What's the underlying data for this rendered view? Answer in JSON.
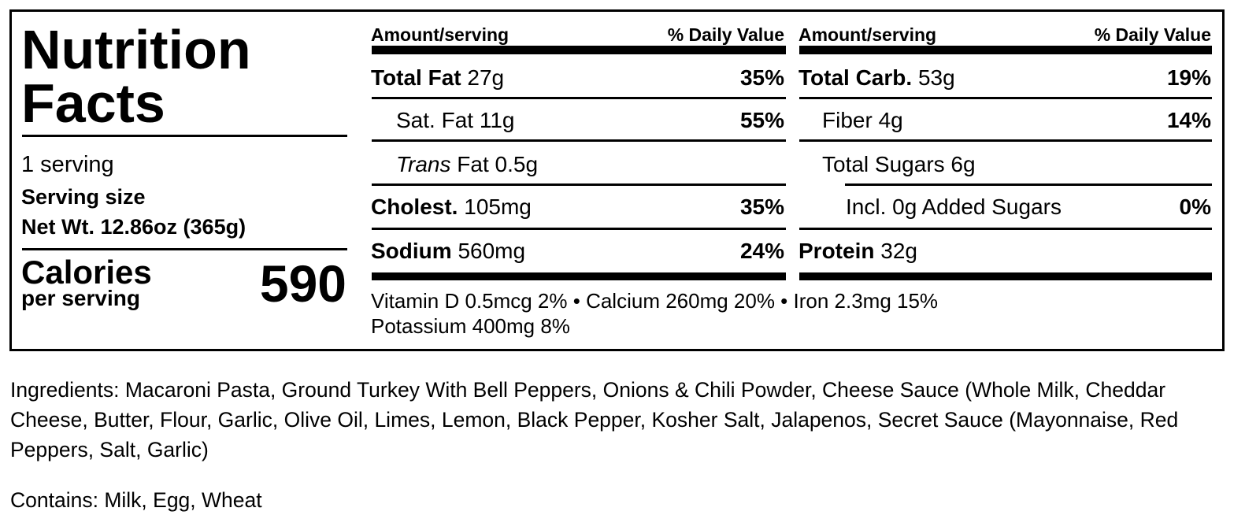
{
  "title_line1": "Nutrition",
  "title_line2": "Facts",
  "servings": "1 serving",
  "serving_size_label": "Serving size",
  "serving_size_value": "Net Wt. 12.86oz (365g)",
  "calories_label": "Calories",
  "calories_sub": "per serving",
  "calories_value": "590",
  "columns": [
    {
      "header_amount": "Amount/serving",
      "header_dv": "% Daily Value",
      "rows": [
        {
          "name": "Total Fat",
          "amount": "27g",
          "dv": "35%"
        },
        {
          "name": "Sat. Fat",
          "amount": "11g",
          "dv": "55%"
        },
        {
          "name": "Trans",
          "amount": "Fat 0.5g",
          "dv": ""
        },
        {
          "name": "Cholest.",
          "amount": "105mg",
          "dv": "35%"
        },
        {
          "name": "Sodium",
          "amount": "560mg",
          "dv": "24%"
        }
      ]
    },
    {
      "header_amount": "Amount/serving",
      "header_dv": "% Daily Value",
      "rows": [
        {
          "name": "Total Carb.",
          "amount": "53g",
          "dv": "19%"
        },
        {
          "name": "Fiber",
          "amount": "4g",
          "dv": "14%"
        },
        {
          "name": "Total Sugars",
          "amount": "6g",
          "dv": ""
        },
        {
          "name": "Incl. 0g Added Sugars",
          "amount": "",
          "dv": "0%"
        },
        {
          "name": "Protein",
          "amount": "32g",
          "dv": ""
        }
      ]
    }
  ],
  "micronutrients_line1": "Vitamin D 0.5mcg 2% • Calcium 260mg 20% • Iron 2.3mg 15%",
  "micronutrients_line2": "Potassium 400mg 8%",
  "ingredients": "Ingredients: Macaroni Pasta, Ground Turkey With Bell Peppers, Onions & Chili Powder, Cheese Sauce (Whole Milk, Cheddar Cheese, Butter, Flour, Garlic, Olive Oil, Limes, Lemon, Black Pepper, Kosher Salt, Jalapenos, Secret Sauce (Mayonnaise, Red Peppers, Salt, Garlic)",
  "contains": "Contains: Milk, Egg, Wheat"
}
